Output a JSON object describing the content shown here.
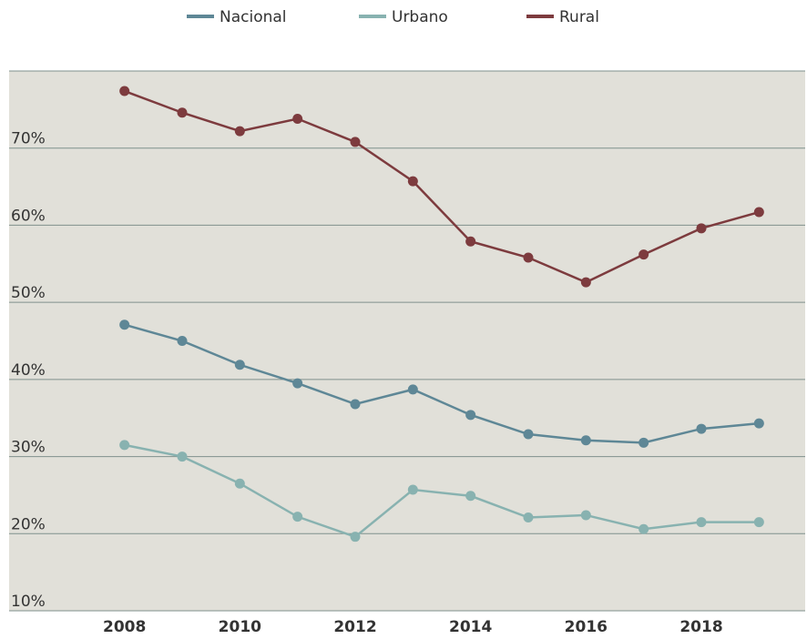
{
  "chart_data": {
    "type": "line",
    "x": [
      2008,
      2009,
      2010,
      2011,
      2012,
      2013,
      2014,
      2015,
      2016,
      2017,
      2018,
      2019
    ],
    "series": [
      {
        "name": "Nacional",
        "color": "#5e8796",
        "values": [
          47.1,
          45.0,
          41.9,
          39.5,
          36.8,
          38.7,
          35.4,
          32.9,
          32.1,
          31.8,
          33.6,
          34.3
        ]
      },
      {
        "name": "Urbano",
        "color": "#88b2b0",
        "values": [
          31.5,
          30.0,
          26.5,
          22.2,
          19.6,
          25.7,
          24.9,
          22.1,
          22.4,
          20.6,
          21.5,
          21.5
        ]
      },
      {
        "name": "Rural",
        "color": "#7d3b3e",
        "values": [
          77.4,
          74.6,
          72.2,
          73.8,
          70.8,
          65.7,
          57.9,
          55.8,
          52.6,
          56.2,
          59.6,
          61.7
        ]
      }
    ],
    "xlim": [
      2006,
      2019.8
    ],
    "xticks": [
      2008,
      2010,
      2012,
      2014,
      2016,
      2018
    ],
    "ylim": [
      10,
      80
    ],
    "yticks": [
      {
        "value": 10,
        "label": "10%"
      },
      {
        "value": 20,
        "label": "20%"
      },
      {
        "value": 30,
        "label": "30%"
      },
      {
        "value": 40,
        "label": "40%"
      },
      {
        "value": 50,
        "label": "50%"
      },
      {
        "value": 60,
        "label": "60%"
      },
      {
        "value": 70,
        "label": "70%"
      }
    ],
    "grid": true,
    "legend": "top"
  }
}
